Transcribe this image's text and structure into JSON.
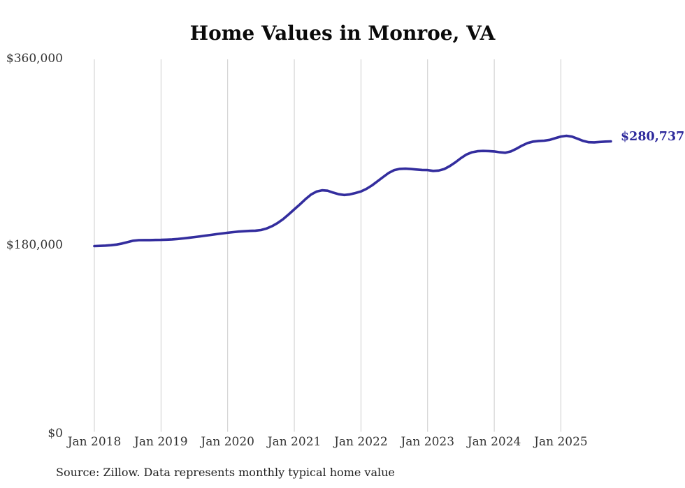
{
  "title": "Home Values in Monroe, VA",
  "source_note": "Source: Zillow. Data represents monthly typical home value",
  "colors": {
    "line": "#332d9e",
    "end_label": "#2e2a9c",
    "grid": "#cccccc",
    "axis_text": "#333333",
    "title_text": "#0a0a0a",
    "background": "#ffffff"
  },
  "chart_data": {
    "type": "line",
    "title": "Home Values in Monroe, VA",
    "x_start": "Jan 2018",
    "x_end": "Oct 2025",
    "x_interval": "monthly",
    "x_tick_labels": [
      "Jan 2018",
      "Jan 2019",
      "Jan 2020",
      "Jan 2021",
      "Jan 2022",
      "Jan 2023",
      "Jan 2024",
      "Jan 2025"
    ],
    "y_tick_labels": [
      "$360,000",
      "$180,000",
      "$0"
    ],
    "y_ticks": [
      360000,
      180000,
      0
    ],
    "ylim": [
      0,
      360000
    ],
    "grid": "vertical-only",
    "legend": "none",
    "last_value": 280737,
    "last_value_label": "$280,737",
    "series": [
      {
        "name": "Typical home value",
        "color": "#332d9e",
        "monthly_values": [
          179500,
          179700,
          180000,
          180400,
          181000,
          182000,
          183400,
          184700,
          185200,
          185300,
          185300,
          185400,
          185500,
          185700,
          186000,
          186400,
          186900,
          187500,
          188200,
          188900,
          189600,
          190300,
          191000,
          191700,
          192400,
          193000,
          193500,
          193900,
          194200,
          194400,
          195000,
          196500,
          198800,
          201800,
          205600,
          210200,
          215000,
          219800,
          224800,
          229300,
          232200,
          233400,
          233000,
          231200,
          229600,
          228900,
          229500,
          230800,
          232300,
          234800,
          238200,
          242200,
          246300,
          250200,
          253000,
          254100,
          254300,
          254000,
          253500,
          253100,
          253000,
          252200,
          252500,
          254000,
          256800,
          260500,
          264500,
          268000,
          270200,
          271200,
          271500,
          271300,
          271000,
          270200,
          269700,
          271000,
          273600,
          276600,
          279100,
          280500,
          281100,
          281400,
          282200,
          283800,
          285400,
          286100,
          285300,
          283300,
          281200,
          279900,
          279800,
          280200,
          280500,
          280737
        ]
      }
    ]
  }
}
